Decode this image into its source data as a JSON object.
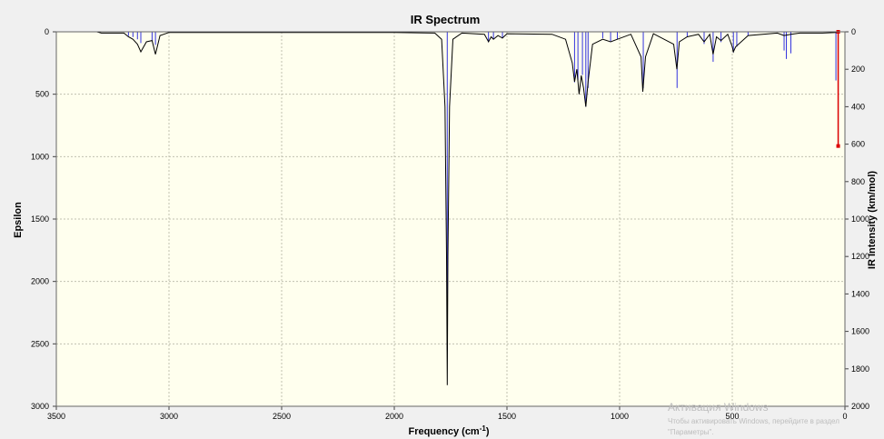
{
  "window": {
    "watermark_title": "Активация Windows",
    "watermark_line1": "Чтобы активировать Windows, перейдите в раздел",
    "watermark_line2": "\"Параметры\"."
  },
  "chart_data": {
    "type": "line",
    "title": "IR Spectrum",
    "xlabel": "Frequency (cm",
    "xlabel_sup": "-1",
    "xlabel_suffix": ")",
    "ylabel": "Epsilon",
    "y2label": "IR Intensity (km/mol)",
    "xlim": [
      3500,
      0
    ],
    "ylim": [
      3000,
      0
    ],
    "y2lim": [
      2000,
      0
    ],
    "x_ticks": [
      3500,
      3000,
      2500,
      2000,
      1500,
      1000,
      500,
      0
    ],
    "y_ticks": [
      0,
      500,
      1000,
      1500,
      2000,
      2500,
      3000
    ],
    "y2_ticks": [
      0,
      200,
      400,
      600,
      800,
      1000,
      1200,
      1400,
      1600,
      1800,
      2000
    ],
    "grid": true,
    "colors": {
      "plot_background": "#ffffee",
      "spectrum_line": "#000000",
      "stick_lines": "#3333dd",
      "selected_marker": "#dd0000",
      "grid": "#c0c0b0"
    },
    "series": [
      {
        "type": "stick",
        "axis": "y2",
        "peaks": [
          [
            3180,
            22
          ],
          [
            3160,
            28
          ],
          [
            3140,
            40
          ],
          [
            3125,
            60
          ],
          [
            3075,
            50
          ],
          [
            3060,
            70
          ],
          [
            1765,
            1700
          ],
          [
            1582,
            55
          ],
          [
            1560,
            40
          ],
          [
            1520,
            35
          ],
          [
            1200,
            270
          ],
          [
            1185,
            260
          ],
          [
            1165,
            230
          ],
          [
            1150,
            400
          ],
          [
            1140,
            300
          ],
          [
            1075,
            35
          ],
          [
            1040,
            50
          ],
          [
            1010,
            40
          ],
          [
            895,
            300
          ],
          [
            745,
            300
          ],
          [
            700,
            25
          ],
          [
            625,
            65
          ],
          [
            585,
            160
          ],
          [
            550,
            55
          ],
          [
            495,
            110
          ],
          [
            480,
            80
          ],
          [
            430,
            20
          ],
          [
            270,
            100
          ],
          [
            260,
            145
          ],
          [
            240,
            115
          ],
          [
            40,
            260
          ],
          [
            30,
            600
          ]
        ]
      },
      {
        "type": "line",
        "axis": "y",
        "points": [
          [
            3320,
            0
          ],
          [
            3300,
            10
          ],
          [
            3200,
            10
          ],
          [
            3180,
            40
          ],
          [
            3160,
            60
          ],
          [
            3140,
            100
          ],
          [
            3125,
            160
          ],
          [
            3100,
            80
          ],
          [
            3075,
            70
          ],
          [
            3060,
            180
          ],
          [
            3040,
            30
          ],
          [
            3000,
            5
          ],
          [
            2000,
            5
          ],
          [
            1820,
            10
          ],
          [
            1790,
            60
          ],
          [
            1775,
            600
          ],
          [
            1768,
            1800
          ],
          [
            1765,
            2830
          ],
          [
            1762,
            1800
          ],
          [
            1755,
            600
          ],
          [
            1740,
            60
          ],
          [
            1700,
            10
          ],
          [
            1600,
            20
          ],
          [
            1582,
            80
          ],
          [
            1570,
            40
          ],
          [
            1560,
            60
          ],
          [
            1540,
            30
          ],
          [
            1520,
            50
          ],
          [
            1500,
            15
          ],
          [
            1300,
            20
          ],
          [
            1240,
            60
          ],
          [
            1210,
            250
          ],
          [
            1200,
            400
          ],
          [
            1190,
            300
          ],
          [
            1180,
            500
          ],
          [
            1170,
            350
          ],
          [
            1160,
            450
          ],
          [
            1150,
            600
          ],
          [
            1140,
            400
          ],
          [
            1120,
            100
          ],
          [
            1075,
            60
          ],
          [
            1040,
            80
          ],
          [
            1010,
            60
          ],
          [
            950,
            20
          ],
          [
            905,
            200
          ],
          [
            897,
            480
          ],
          [
            885,
            200
          ],
          [
            850,
            15
          ],
          [
            760,
            100
          ],
          [
            746,
            300
          ],
          [
            735,
            80
          ],
          [
            700,
            40
          ],
          [
            650,
            20
          ],
          [
            625,
            80
          ],
          [
            600,
            20
          ],
          [
            585,
            180
          ],
          [
            570,
            40
          ],
          [
            550,
            70
          ],
          [
            520,
            20
          ],
          [
            500,
            120
          ],
          [
            495,
            160
          ],
          [
            485,
            120
          ],
          [
            430,
            30
          ],
          [
            300,
            10
          ],
          [
            270,
            30
          ],
          [
            240,
            20
          ],
          [
            200,
            10
          ],
          [
            100,
            10
          ],
          [
            40,
            5
          ],
          [
            30,
            0
          ]
        ]
      }
    ],
    "selected_peak": {
      "x": 30,
      "y2_from": 0,
      "y2_to": 610
    }
  }
}
